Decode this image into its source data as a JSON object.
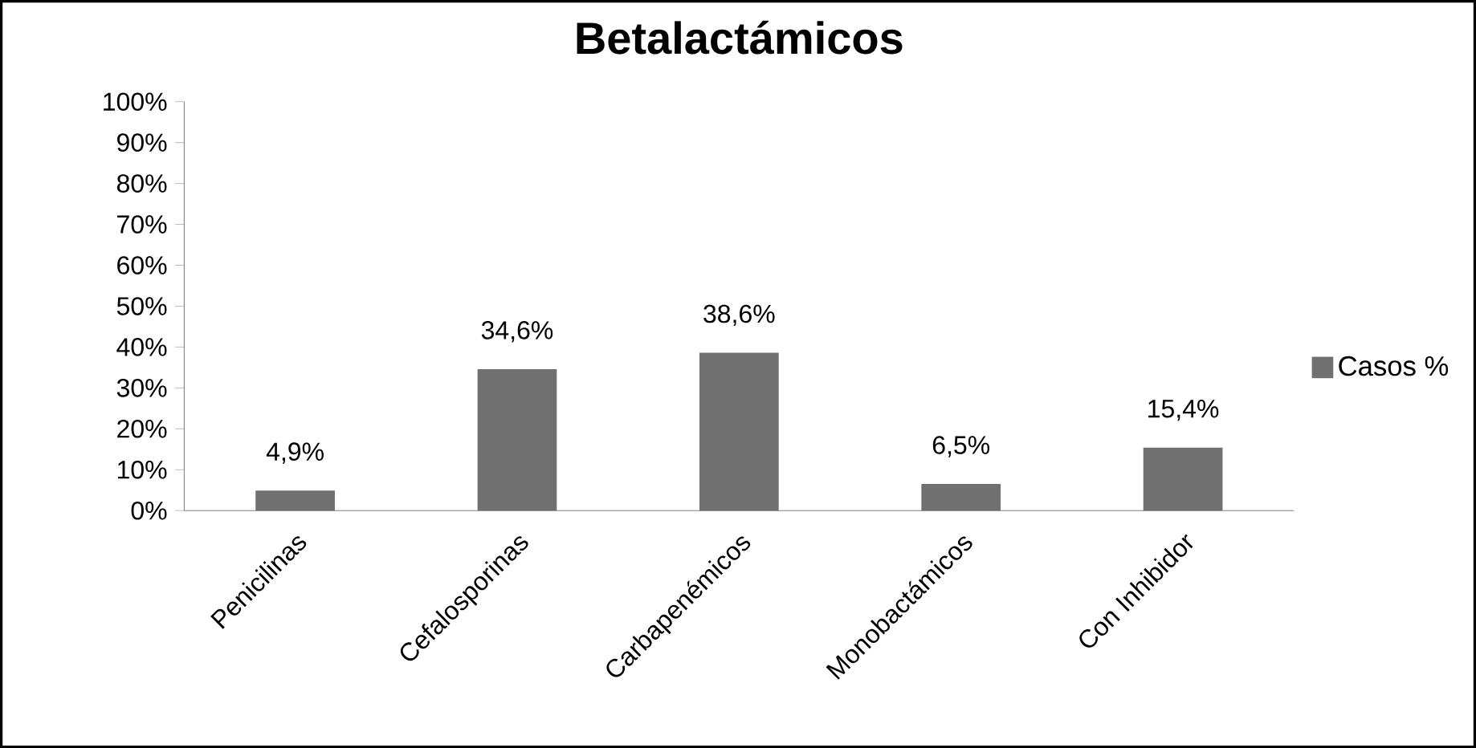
{
  "chart_data": {
    "type": "bar",
    "title": "Betalactámicos",
    "categories": [
      "Penicilinas",
      "Cefalosporinas",
      "Carbapenémicos",
      "Monobactámicos",
      "Con Inhibidor"
    ],
    "series": [
      {
        "name": "Casos %",
        "color": "#707070",
        "values": [
          4.9,
          34.6,
          38.6,
          6.5,
          15.4
        ],
        "value_labels": [
          "4,9%",
          "34,6%",
          "38,6%",
          "6,5%",
          "15,4%"
        ]
      }
    ],
    "ylim": [
      0,
      100
    ],
    "yticks": [
      {
        "value": 0,
        "label": "0%"
      },
      {
        "value": 10,
        "label": "10%"
      },
      {
        "value": 20,
        "label": "20%"
      },
      {
        "value": 30,
        "label": "30%"
      },
      {
        "value": 40,
        "label": "40%"
      },
      {
        "value": 50,
        "label": "50%"
      },
      {
        "value": 60,
        "label": "60%"
      },
      {
        "value": 70,
        "label": "70%"
      },
      {
        "value": 80,
        "label": "80%"
      },
      {
        "value": 90,
        "label": "90%"
      },
      {
        "value": 100,
        "label": "100%"
      }
    ],
    "legend": "right"
  }
}
